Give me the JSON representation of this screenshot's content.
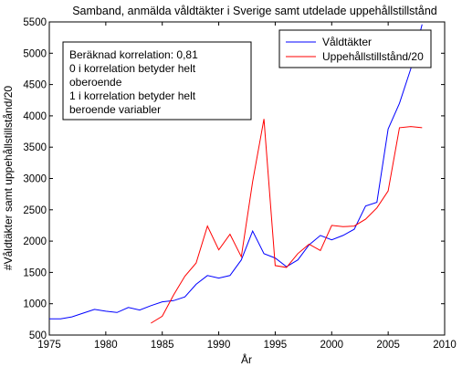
{
  "chart_data": {
    "type": "line",
    "title": "Samband, anmälda våldtäkter i Sverige samt utdelade uppehållstillstånd",
    "xlabel": "År",
    "ylabel": "#Våldtäkter samt uppehållstillstånd/20",
    "xlim": [
      1975,
      2010
    ],
    "ylim": [
      500,
      5500
    ],
    "x_ticks": [
      1975,
      1980,
      1985,
      1990,
      1995,
      2000,
      2005,
      2010
    ],
    "y_ticks": [
      500,
      1000,
      1500,
      2000,
      2500,
      3000,
      3500,
      4000,
      4500,
      5000,
      5500
    ],
    "grid": false,
    "legend_position": "top-right",
    "annotation": [
      "Beräknad korrelation: 0,81",
      "0 i korrelation betyder helt",
      "oberoende",
      "1 i korrelation betyder helt",
      "beroende variabler"
    ],
    "series": [
      {
        "name": "Våldtäkter",
        "color": "#0000ff",
        "x": [
          1975,
          1976,
          1977,
          1978,
          1979,
          1980,
          1981,
          1982,
          1983,
          1984,
          1985,
          1986,
          1987,
          1988,
          1989,
          1990,
          1991,
          1992,
          1993,
          1994,
          1995,
          1996,
          1997,
          1998,
          1999,
          2000,
          2001,
          2002,
          2003,
          2004,
          2005,
          2006,
          2007,
          2008
        ],
        "values": [
          760,
          760,
          790,
          850,
          910,
          880,
          860,
          940,
          900,
          970,
          1030,
          1050,
          1110,
          1310,
          1450,
          1410,
          1450,
          1700,
          2160,
          1800,
          1730,
          1590,
          1700,
          1940,
          2090,
          2020,
          2090,
          2190,
          2560,
          2620,
          3790,
          4200,
          4750,
          5460
        ]
      },
      {
        "name": "Uppehållstillstånd/20",
        "color": "#ff0000",
        "x": [
          1984,
          1985,
          1986,
          1987,
          1988,
          1989,
          1990,
          1991,
          1992,
          1993,
          1994,
          1995,
          1996,
          1997,
          1998,
          1999,
          2000,
          2001,
          2002,
          2003,
          2004,
          2005,
          2006,
          2007,
          2008
        ],
        "values": [
          690,
          800,
          1140,
          1440,
          1650,
          2240,
          1860,
          2110,
          1750,
          2950,
          3950,
          1610,
          1580,
          1800,
          1950,
          1850,
          2250,
          2230,
          2240,
          2350,
          2530,
          2800,
          3810,
          3830,
          3810
        ]
      }
    ]
  }
}
